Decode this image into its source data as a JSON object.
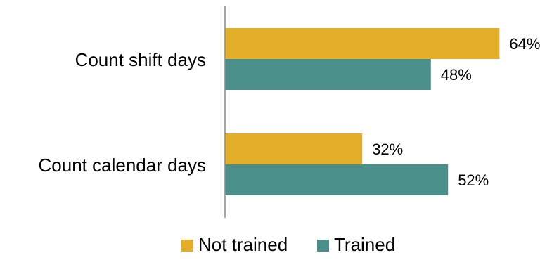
{
  "chart_data": {
    "type": "bar",
    "orientation": "horizontal",
    "categories": [
      "Count shift days",
      "Count calendar days"
    ],
    "series": [
      {
        "name": "Not trained",
        "values": [
          64,
          32
        ],
        "color": "#E3AE2A"
      },
      {
        "name": "Trained",
        "values": [
          48,
          52
        ],
        "color": "#4A8F8A"
      }
    ],
    "value_suffix": "%",
    "xlim": [
      0,
      100
    ],
    "grid": false,
    "legend_position": "bottom"
  }
}
